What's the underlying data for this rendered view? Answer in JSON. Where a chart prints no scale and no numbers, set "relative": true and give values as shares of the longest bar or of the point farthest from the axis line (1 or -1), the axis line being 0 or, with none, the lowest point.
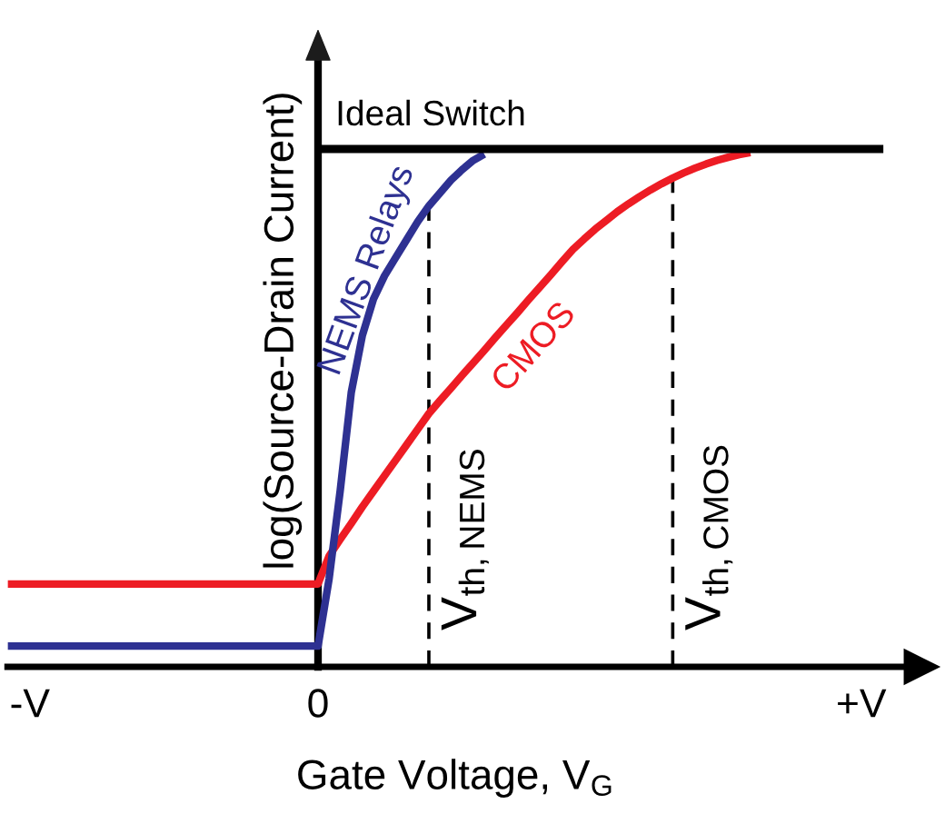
{
  "chart_data": {
    "type": "line",
    "relative": true,
    "xlabel": "Gate Voltage, V$_{G}$",
    "ylabel": "log(Source-Drain Current)",
    "categories": [
      null,
      null,
      "-V",
      null,
      null,
      null,
      null,
      null,
      null,
      null,
      null,
      null,
      null,
      null,
      null,
      null,
      null,
      null,
      null,
      null,
      null,
      null,
      null,
      null,
      null,
      null,
      null,
      null,
      "0",
      null,
      null,
      null,
      null,
      null,
      null,
      null,
      null,
      null,
      null,
      null,
      null,
      null,
      null,
      null,
      null,
      null,
      null,
      null,
      null,
      null,
      null,
      null,
      null,
      null,
      null,
      null,
      null,
      null,
      null,
      null,
      null,
      null,
      null,
      null,
      null,
      null,
      null,
      null,
      null,
      null,
      null,
      null,
      null,
      null,
      null,
      null,
      null,
      "+V",
      null,
      null
    ],
    "series": [
      {
        "name": "Ideal Switch",
        "color": "#000000",
        "values": [
          null,
          null,
          null,
          null,
          null,
          null,
          null,
          null,
          null,
          null,
          null,
          null,
          null,
          null,
          null,
          null,
          null,
          null,
          null,
          null,
          null,
          null,
          null,
          null,
          null,
          null,
          null,
          null,
          1,
          1,
          1,
          1,
          1,
          1,
          1,
          1,
          1,
          1,
          1,
          1,
          1,
          1,
          1,
          1,
          1,
          1,
          1,
          1,
          1,
          1,
          1,
          1,
          1,
          1,
          1,
          1,
          1,
          1,
          1,
          1,
          1,
          1,
          1,
          1,
          1,
          1,
          1,
          1,
          1,
          1,
          1,
          1,
          1,
          1,
          1,
          1,
          1,
          1,
          1,
          1
        ]
      },
      {
        "name": "NEMS Relays",
        "color": "#2e3192",
        "values": [
          0.04,
          0.04,
          0.04,
          0.04,
          0.04,
          0.04,
          0.04,
          0.04,
          0.04,
          0.04,
          0.04,
          0.04,
          0.04,
          0.04,
          0.04,
          0.04,
          0.04,
          0.04,
          0.04,
          0.04,
          0.04,
          0.04,
          0.04,
          0.04,
          0.04,
          0.04,
          0.04,
          0.04,
          0.04,
          0.17,
          0.34,
          0.53,
          0.64,
          0.71,
          0.755,
          0.79,
          0.825,
          0.86,
          0.89,
          0.915,
          0.94,
          0.96,
          0.978,
          0.99,
          null,
          null,
          null,
          null,
          null,
          null,
          null,
          null,
          null,
          null,
          null,
          null,
          null,
          null,
          null,
          null,
          null,
          null,
          null,
          null,
          null,
          null,
          null,
          null,
          null,
          null,
          null,
          null,
          null,
          null,
          null,
          null,
          null,
          null,
          null,
          null
        ]
      },
      {
        "name": "CMOS",
        "color": "#ed1c24",
        "values": [
          0.16,
          0.16,
          0.16,
          0.16,
          0.16,
          0.16,
          0.16,
          0.16,
          0.16,
          0.16,
          0.16,
          0.16,
          0.16,
          0.16,
          0.16,
          0.16,
          0.16,
          0.16,
          0.16,
          0.16,
          0.16,
          0.16,
          0.16,
          0.16,
          0.16,
          0.16,
          0.16,
          0.16,
          0.16,
          0.214,
          0.246,
          0.277,
          0.309,
          0.339,
          0.369,
          0.399,
          0.429,
          0.459,
          0.489,
          0.514,
          0.538,
          0.563,
          0.587,
          0.611,
          0.636,
          0.66,
          0.684,
          0.709,
          0.733,
          0.757,
          0.782,
          0.806,
          0.826,
          0.845,
          0.862,
          0.879,
          0.894,
          0.908,
          0.921,
          0.933,
          0.944,
          0.954,
          0.963,
          0.971,
          0.978,
          0.984,
          0.989,
          0.993,
          null,
          null,
          null,
          null,
          null,
          null,
          null,
          null,
          null,
          null,
          null,
          null
        ]
      }
    ],
    "annotations": [
      "V$_{th,NEMS}$",
      "V$_{th,CMOS}$"
    ]
  }
}
